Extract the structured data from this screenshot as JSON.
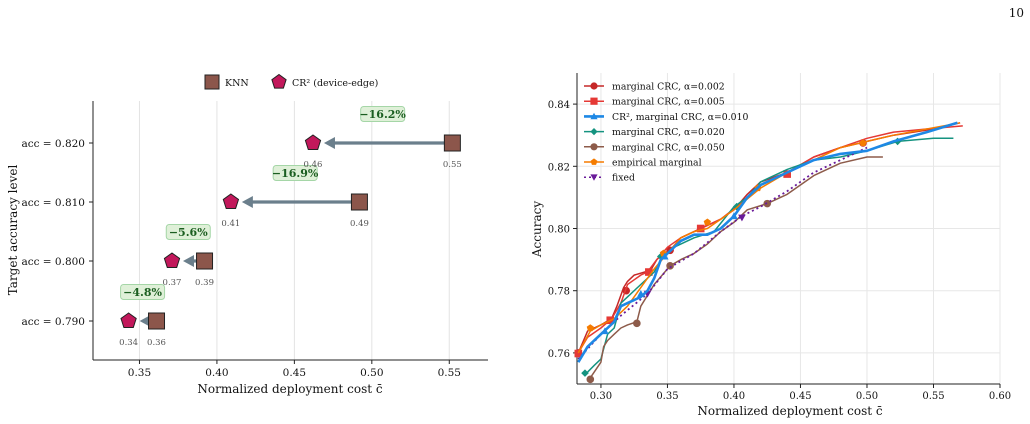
{
  "page_number": "10",
  "chart_data": [
    {
      "type": "scatter",
      "title": "",
      "xlabel": "Normalized deployment cost  c̄",
      "ylabel": "Target accuracy level",
      "xlim": [
        0.32,
        0.575
      ],
      "xticks": [
        "0.35",
        "0.40",
        "0.45",
        "0.50",
        "0.55"
      ],
      "xtick_values": [
        0.35,
        0.4,
        0.45,
        0.5,
        0.55
      ],
      "categories": [
        "acc = 0.790",
        "acc = 0.800",
        "acc = 0.810",
        "acc = 0.820"
      ],
      "grid": true,
      "legend": {
        "placement": "top-center",
        "entries": [
          "KNN",
          "CR² (device-edge)"
        ]
      },
      "series": [
        {
          "name": "KNN",
          "color": "#8c564b",
          "marker": "square",
          "values": [
            0.361,
            0.392,
            0.492,
            0.552
          ],
          "labels": [
            "0.36",
            "0.39",
            "0.49",
            "0.55"
          ]
        },
        {
          "name": "CR² (device-edge)",
          "color": "#c2185b",
          "marker": "pentagon",
          "values": [
            0.343,
            0.371,
            0.409,
            0.462
          ],
          "labels": [
            "0.34",
            "0.37",
            "0.41",
            "0.46"
          ]
        }
      ],
      "reductions": [
        "−4.8%",
        "−5.6%",
        "−16.9%",
        "−16.2%"
      ],
      "arrow_color": "#6b7f8c",
      "badge_fill": "#dff0d8",
      "badge_text_color": "#1b5e20"
    },
    {
      "type": "line",
      "title": "",
      "xlabel": "Normalized deployment cost  c̄",
      "ylabel": "Accuracy",
      "xlim": [
        0.282,
        0.6
      ],
      "ylim": [
        0.75,
        0.85
      ],
      "xticks": [
        "0.30",
        "0.35",
        "0.40",
        "0.45",
        "0.50",
        "0.55",
        "0.60"
      ],
      "xtick_values": [
        0.3,
        0.35,
        0.4,
        0.45,
        0.5,
        0.55,
        0.6
      ],
      "yticks": [
        "0.76",
        "0.78",
        "0.80",
        "0.82",
        "0.84"
      ],
      "ytick_values": [
        0.76,
        0.78,
        0.8,
        0.82,
        0.84
      ],
      "grid": true,
      "legend": {
        "placement": "top-left"
      },
      "series": [
        {
          "name": "marginal CRC, α=0.002",
          "color": "#c62828",
          "marker": "circle",
          "style": "solid",
          "x": [
            0.283,
            0.29,
            0.3,
            0.308,
            0.312,
            0.317,
            0.32,
            0.325,
            0.333,
            0.338,
            0.342,
            0.347,
            0.352,
            0.36,
            0.37,
            0.38,
            0.39,
            0.4,
            0.41,
            0.42,
            0.44,
            0.46,
            0.48,
            0.5,
            0.52,
            0.55,
            0.57
          ],
          "y": [
            0.76,
            0.767,
            0.769,
            0.771,
            0.775,
            0.781,
            0.783,
            0.785,
            0.786,
            0.787,
            0.79,
            0.792,
            0.793,
            0.797,
            0.799,
            0.801,
            0.803,
            0.806,
            0.811,
            0.815,
            0.818,
            0.823,
            0.826,
            0.828,
            0.83,
            0.832,
            0.834
          ],
          "marker_x": [
            0.283,
            0.319,
            0.352,
            0.497
          ],
          "marker_y": [
            0.76,
            0.78,
            0.793,
            0.8275
          ]
        },
        {
          "name": "marginal CRC, α=0.005",
          "color": "#e53935",
          "marker": "square",
          "style": "solid",
          "x": [
            0.283,
            0.29,
            0.3,
            0.308,
            0.315,
            0.32,
            0.33,
            0.335,
            0.342,
            0.35,
            0.36,
            0.375,
            0.39,
            0.405,
            0.42,
            0.44,
            0.46,
            0.48,
            0.5,
            0.52,
            0.545,
            0.572
          ],
          "y": [
            0.76,
            0.765,
            0.768,
            0.771,
            0.776,
            0.782,
            0.785,
            0.786,
            0.79,
            0.794,
            0.797,
            0.8,
            0.803,
            0.808,
            0.814,
            0.818,
            0.823,
            0.826,
            0.829,
            0.831,
            0.832,
            0.833
          ],
          "marker_x": [
            0.283,
            0.307,
            0.336,
            0.375,
            0.44
          ],
          "marker_y": [
            0.7598,
            0.7705,
            0.786,
            0.8,
            0.8175
          ]
        },
        {
          "name": "CR², marginal CRC, α=0.010",
          "color": "#1e88e5",
          "marker": "triangle",
          "style": "solid",
          "bold": true,
          "x": [
            0.283,
            0.29,
            0.3,
            0.31,
            0.315,
            0.32,
            0.33,
            0.335,
            0.34,
            0.345,
            0.35,
            0.36,
            0.37,
            0.38,
            0.39,
            0.4,
            0.41,
            0.42,
            0.44,
            0.46,
            0.48,
            0.5,
            0.52,
            0.545,
            0.568
          ],
          "y": [
            0.757,
            0.762,
            0.766,
            0.77,
            0.775,
            0.776,
            0.778,
            0.78,
            0.784,
            0.79,
            0.792,
            0.796,
            0.798,
            0.798,
            0.8,
            0.804,
            0.81,
            0.814,
            0.818,
            0.822,
            0.824,
            0.825,
            0.828,
            0.831,
            0.834
          ],
          "marker_x": [
            0.303,
            0.33,
            0.348,
            0.4
          ],
          "marker_y": [
            0.767,
            0.779,
            0.791,
            0.804
          ]
        },
        {
          "name": "marginal CRC, α=0.020",
          "color": "#159380",
          "marker": "diamond",
          "style": "solid",
          "x": [
            0.288,
            0.295,
            0.3,
            0.305,
            0.31,
            0.315,
            0.32,
            0.33,
            0.34,
            0.345,
            0.355,
            0.37,
            0.385,
            0.4,
            0.41,
            0.42,
            0.44,
            0.46,
            0.48,
            0.5,
            0.523,
            0.55,
            0.565
          ],
          "y": [
            0.753,
            0.756,
            0.758,
            0.766,
            0.768,
            0.776,
            0.778,
            0.782,
            0.786,
            0.79,
            0.794,
            0.797,
            0.799,
            0.807,
            0.81,
            0.815,
            0.819,
            0.822,
            0.823,
            0.825,
            0.828,
            0.829,
            0.829
          ],
          "marker_x": [
            0.288,
            0.345,
            0.402,
            0.523
          ],
          "marker_y": [
            0.7535,
            0.791,
            0.807,
            0.828
          ]
        },
        {
          "name": "marginal CRC, α=0.050",
          "color": "#8d5b4a",
          "marker": "circle",
          "style": "solid",
          "x": [
            0.292,
            0.3,
            0.302,
            0.305,
            0.31,
            0.315,
            0.32,
            0.327,
            0.33,
            0.34,
            0.352,
            0.36,
            0.37,
            0.38,
            0.39,
            0.4,
            0.41,
            0.425,
            0.44,
            0.46,
            0.48,
            0.5,
            0.512
          ],
          "y": [
            0.752,
            0.757,
            0.762,
            0.764,
            0.766,
            0.768,
            0.769,
            0.77,
            0.775,
            0.782,
            0.788,
            0.79,
            0.792,
            0.795,
            0.799,
            0.802,
            0.806,
            0.808,
            0.811,
            0.817,
            0.821,
            0.823,
            0.823
          ],
          "marker_x": [
            0.292,
            0.327,
            0.352,
            0.425
          ],
          "marker_y": [
            0.7515,
            0.7695,
            0.788,
            0.808
          ]
        },
        {
          "name": "empirical marginal",
          "color": "#f57c00",
          "marker": "pentagon",
          "style": "solid",
          "x": [
            0.283,
            0.292,
            0.3,
            0.31,
            0.32,
            0.33,
            0.34,
            0.35,
            0.36,
            0.37,
            0.38,
            0.39,
            0.4,
            0.42,
            0.44,
            0.46,
            0.48,
            0.5,
            0.52,
            0.545,
            0.57
          ],
          "y": [
            0.76,
            0.767,
            0.769,
            0.771,
            0.775,
            0.781,
            0.787,
            0.792,
            0.797,
            0.799,
            0.8,
            0.803,
            0.806,
            0.813,
            0.818,
            0.822,
            0.826,
            0.828,
            0.83,
            0.832,
            0.834
          ],
          "marker_x": [
            0.292,
            0.347,
            0.38,
            0.418,
            0.497
          ],
          "marker_y": [
            0.768,
            0.792,
            0.802,
            0.813,
            0.8275
          ]
        },
        {
          "name": "fixed",
          "color": "#6a1b9a",
          "marker": "triangle-down",
          "style": "dotted",
          "x": [
            0.283,
            0.3,
            0.315,
            0.335,
            0.35,
            0.37,
            0.39,
            0.406,
            0.42,
            0.44,
            0.46,
            0.48,
            0.5
          ],
          "y": [
            0.758,
            0.766,
            0.772,
            0.779,
            0.787,
            0.792,
            0.799,
            0.804,
            0.807,
            0.812,
            0.818,
            0.822,
            0.826
          ],
          "marker_x": [
            0.335,
            0.406
          ],
          "marker_y": [
            0.779,
            0.8035
          ]
        }
      ]
    }
  ]
}
